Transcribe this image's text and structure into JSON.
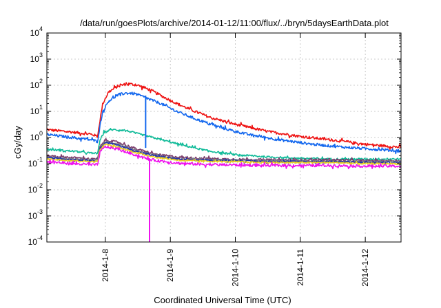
{
  "chart_data": {
    "type": "line",
    "title": "/data/run/goesPlots/archive/2014-01-12/11:00/flux/../bryn/5daysEarthData.plot",
    "xlabel": "Coordinated Universal Time (UTC)",
    "ylabel": "cGy/day",
    "yscale": "log",
    "ylim": [
      0.0001,
      10000
    ],
    "xlim_days": [
      -0.9,
      4.55
    ],
    "grid": true,
    "x_ticks": [
      {
        "label": "2014-1-8",
        "day": 0
      },
      {
        "label": "2014-1-9",
        "day": 1
      },
      {
        "label": "2014-1-10",
        "day": 2
      },
      {
        "label": "2014-1-11",
        "day": 3
      },
      {
        "label": "2014-1-12",
        "day": 4
      }
    ],
    "y_ticks": [
      {
        "base": "10",
        "exp": "-4",
        "value": 0.0001
      },
      {
        "base": "10",
        "exp": "-3",
        "value": 0.001
      },
      {
        "base": "10",
        "exp": "-2",
        "value": 0.01
      },
      {
        "base": "10",
        "exp": "-1",
        "value": 0.1
      },
      {
        "base": "10",
        "exp": "0",
        "value": 1
      },
      {
        "base": "10",
        "exp": "1",
        "value": 10
      },
      {
        "base": "10",
        "exp": "2",
        "value": 100
      },
      {
        "base": "10",
        "exp": "3",
        "value": 1000
      },
      {
        "base": "10",
        "exp": "4",
        "value": 10000
      }
    ],
    "series": [
      {
        "color": "#ee1111",
        "noise": 0.05,
        "points": [
          [
            -0.9,
            2.0
          ],
          [
            -0.5,
            1.6
          ],
          [
            -0.2,
            1.3
          ],
          [
            -0.12,
            1.1
          ],
          [
            -0.08,
            5
          ],
          [
            -0.04,
            20
          ],
          [
            0.05,
            55
          ],
          [
            0.2,
            95
          ],
          [
            0.35,
            115
          ],
          [
            0.5,
            100
          ],
          [
            0.7,
            65
          ],
          [
            0.9,
            35
          ],
          [
            1.1,
            20
          ],
          [
            1.3,
            12
          ],
          [
            1.6,
            6
          ],
          [
            2.0,
            3.2
          ],
          [
            2.5,
            1.7
          ],
          [
            3.0,
            1.1
          ],
          [
            3.5,
            0.8
          ],
          [
            4.0,
            0.55
          ],
          [
            4.55,
            0.42
          ]
        ]
      },
      {
        "color": "#1166ee",
        "noise": 0.05,
        "points": [
          [
            -0.9,
            1.3
          ],
          [
            -0.5,
            1.0
          ],
          [
            -0.2,
            0.8
          ],
          [
            -0.12,
            0.7
          ],
          [
            -0.08,
            3
          ],
          [
            -0.04,
            10
          ],
          [
            0.05,
            25
          ],
          [
            0.2,
            43
          ],
          [
            0.3,
            50
          ],
          [
            0.45,
            48
          ],
          [
            0.6,
            35
          ],
          [
            0.85,
            20
          ],
          [
            1.1,
            10
          ],
          [
            1.4,
            5
          ],
          [
            1.8,
            2.3
          ],
          [
            2.2,
            1.3
          ],
          [
            2.7,
            0.8
          ],
          [
            3.2,
            0.55
          ],
          [
            3.7,
            0.42
          ],
          [
            4.2,
            0.35
          ],
          [
            4.55,
            0.3
          ]
        ]
      },
      {
        "color": "#11bb99",
        "noise": 0.035,
        "points": [
          [
            -0.9,
            0.35
          ],
          [
            -0.5,
            0.3
          ],
          [
            -0.2,
            0.25
          ],
          [
            -0.12,
            0.25
          ],
          [
            -0.08,
            0.8
          ],
          [
            -0.02,
            1.6
          ],
          [
            0.1,
            2.0
          ],
          [
            0.3,
            1.9
          ],
          [
            0.5,
            1.4
          ],
          [
            0.8,
            0.9
          ],
          [
            1.2,
            0.5
          ],
          [
            1.6,
            0.3
          ],
          [
            2.0,
            0.22
          ],
          [
            2.5,
            0.18
          ],
          [
            3.0,
            0.16
          ],
          [
            3.5,
            0.15
          ],
          [
            4.0,
            0.15
          ],
          [
            4.55,
            0.15
          ]
        ]
      },
      {
        "color": "#7a3a6a",
        "noise": 0.04,
        "points": [
          [
            -0.9,
            0.2
          ],
          [
            -0.5,
            0.17
          ],
          [
            -0.2,
            0.15
          ],
          [
            -0.12,
            0.15
          ],
          [
            -0.08,
            0.45
          ],
          [
            0.0,
            0.8
          ],
          [
            0.2,
            0.65
          ],
          [
            0.5,
            0.35
          ],
          [
            0.8,
            0.22
          ],
          [
            1.2,
            0.17
          ],
          [
            1.8,
            0.15
          ],
          [
            2.5,
            0.14
          ],
          [
            3.0,
            0.14
          ],
          [
            3.5,
            0.14
          ],
          [
            4.0,
            0.13
          ],
          [
            4.55,
            0.13
          ]
        ]
      },
      {
        "color": "#7a7a8a",
        "noise": 0.03,
        "points": [
          [
            -0.9,
            0.18
          ],
          [
            -0.5,
            0.15
          ],
          [
            -0.2,
            0.14
          ],
          [
            -0.12,
            0.14
          ],
          [
            -0.08,
            0.4
          ],
          [
            0.0,
            0.7
          ],
          [
            0.2,
            0.55
          ],
          [
            0.5,
            0.3
          ],
          [
            0.8,
            0.2
          ],
          [
            1.2,
            0.15
          ],
          [
            1.8,
            0.14
          ],
          [
            2.5,
            0.13
          ],
          [
            3.0,
            0.13
          ],
          [
            3.5,
            0.12
          ],
          [
            4.0,
            0.12
          ],
          [
            4.55,
            0.12
          ]
        ]
      },
      {
        "color": "#2233aa",
        "noise": 0.03,
        "points": [
          [
            -0.9,
            0.17
          ],
          [
            -0.5,
            0.14
          ],
          [
            -0.2,
            0.13
          ],
          [
            -0.12,
            0.13
          ],
          [
            -0.08,
            0.38
          ],
          [
            0.0,
            0.65
          ],
          [
            0.2,
            0.5
          ],
          [
            0.5,
            0.28
          ],
          [
            0.8,
            0.19
          ],
          [
            1.2,
            0.14
          ],
          [
            1.8,
            0.13
          ],
          [
            2.5,
            0.12
          ],
          [
            3.0,
            0.12
          ],
          [
            3.5,
            0.12
          ],
          [
            4.0,
            0.11
          ],
          [
            4.55,
            0.11
          ]
        ]
      },
      {
        "color": "#e8d020",
        "noise": 0.03,
        "points": [
          [
            -0.9,
            0.15
          ],
          [
            -0.5,
            0.13
          ],
          [
            -0.2,
            0.12
          ],
          [
            -0.12,
            0.12
          ],
          [
            -0.08,
            0.35
          ],
          [
            0.0,
            0.55
          ],
          [
            0.2,
            0.42
          ],
          [
            0.5,
            0.25
          ],
          [
            0.8,
            0.17
          ],
          [
            1.2,
            0.13
          ],
          [
            1.8,
            0.12
          ],
          [
            2.5,
            0.11
          ],
          [
            3.0,
            0.11
          ],
          [
            3.5,
            0.11
          ],
          [
            4.0,
            0.1
          ],
          [
            4.55,
            0.1
          ]
        ]
      },
      {
        "color": "#ee11ee",
        "noise": 0.05,
        "points": [
          [
            -0.9,
            0.12
          ],
          [
            -0.5,
            0.1
          ],
          [
            -0.2,
            0.09
          ],
          [
            -0.12,
            0.09
          ],
          [
            -0.08,
            0.28
          ],
          [
            0.0,
            0.45
          ],
          [
            0.2,
            0.35
          ],
          [
            0.5,
            0.2
          ],
          [
            0.65,
            0.15
          ],
          [
            0.8,
            0.13
          ],
          [
            1.2,
            0.1
          ],
          [
            1.8,
            0.09
          ],
          [
            2.5,
            0.085
          ],
          [
            3.0,
            0.085
          ],
          [
            3.5,
            0.085
          ],
          [
            4.0,
            0.08
          ],
          [
            4.55,
            0.08
          ]
        ]
      }
    ],
    "drops": [
      {
        "color": "#1166ee",
        "day": 0.62,
        "from": 40,
        "to": 0.4
      },
      {
        "color": "#ee11ee",
        "day": 0.68,
        "from": 0.15,
        "to": 0.0001
      }
    ]
  }
}
